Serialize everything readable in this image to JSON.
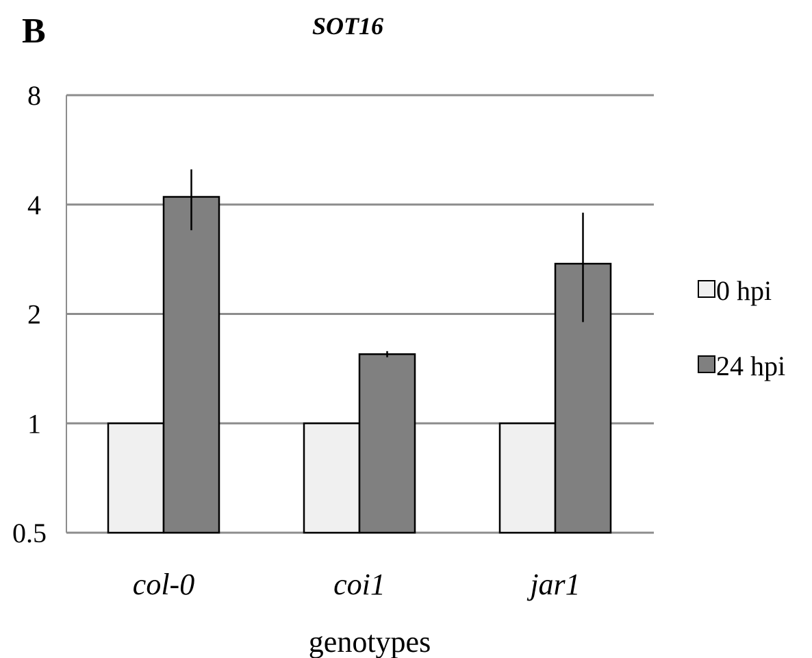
{
  "panel_label": "B",
  "chart_data": {
    "type": "bar",
    "title": "SOT16",
    "xlabel": "genotypes",
    "ylabel": "",
    "yscale": "log2",
    "ylim": [
      0.5,
      8
    ],
    "yticks": [
      0.5,
      1,
      2,
      4,
      8
    ],
    "ytick_labels": [
      "0.5",
      "1",
      "2",
      "4",
      "8"
    ],
    "categories": [
      "col-0",
      "coi1",
      "jar1"
    ],
    "series": [
      {
        "name": "0 hpi",
        "color": "#f0f0f0",
        "values": [
          1,
          1,
          1
        ],
        "errors": [
          null,
          null,
          null
        ]
      },
      {
        "name": "24 hpi",
        "color": "#808080",
        "values": [
          4.2,
          1.55,
          2.75
        ],
        "errors": [
          [
            3.4,
            5.0
          ],
          [
            1.52,
            1.58
          ],
          [
            1.9,
            3.8
          ]
        ]
      }
    ],
    "grid": true,
    "legend_position": "right"
  }
}
